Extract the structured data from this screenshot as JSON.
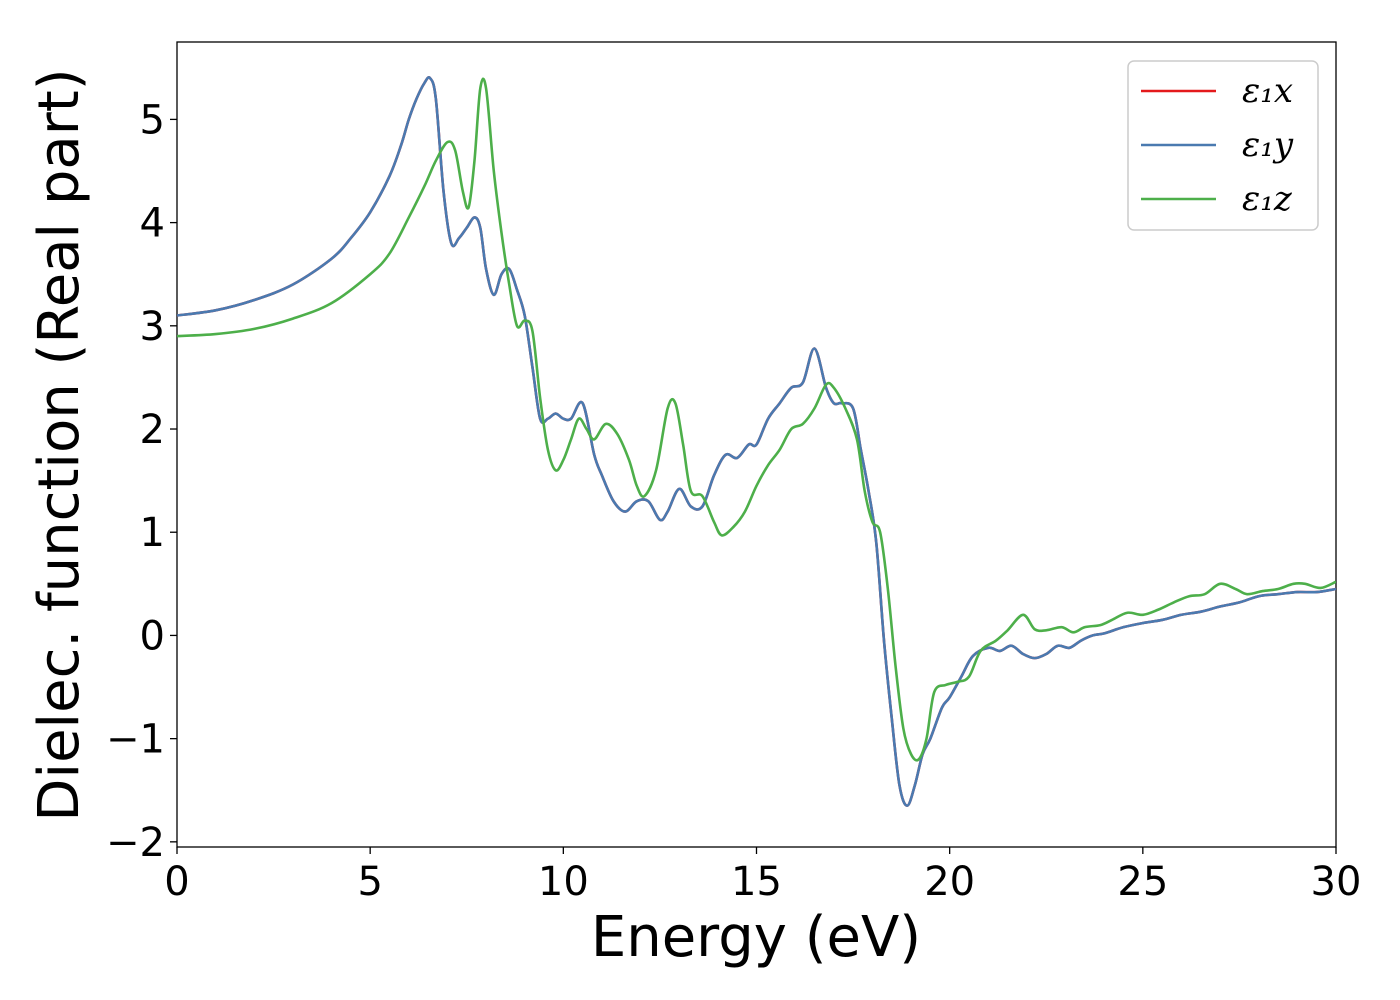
{
  "chart_data": {
    "type": "line",
    "title": "",
    "xlabel": "Energy (eV)",
    "ylabel": "Dielec. function (Real part)",
    "xlim": [
      0,
      30
    ],
    "ylim": [
      -2.05,
      5.75
    ],
    "xticks": [
      0,
      5,
      10,
      15,
      20,
      25,
      30
    ],
    "yticks": [
      -2,
      -1,
      0,
      1,
      2,
      3,
      4,
      5
    ],
    "xtick_labels": [
      "0",
      "5",
      "10",
      "15",
      "20",
      "25",
      "30"
    ],
    "ytick_labels": [
      "−2",
      "−1",
      "0",
      "1",
      "2",
      "3",
      "4",
      "5"
    ],
    "grid": false,
    "legend_position": "top-right",
    "series": [
      {
        "name": "ε₁x",
        "color": "#e41a1c",
        "x": [
          0,
          1,
          2,
          3,
          4,
          4.5,
          5,
          5.5,
          5.8,
          6.0,
          6.2,
          6.4,
          6.55,
          6.7,
          6.9,
          7.1,
          7.3,
          7.5,
          7.7,
          7.85,
          8.0,
          8.2,
          8.4,
          8.6,
          8.8,
          9.0,
          9.2,
          9.4,
          9.6,
          9.8,
          10.0,
          10.2,
          10.5,
          10.8,
          11.0,
          11.3,
          11.6,
          11.9,
          12.2,
          12.5,
          12.7,
          13.0,
          13.3,
          13.6,
          13.9,
          14.2,
          14.5,
          14.8,
          15.0,
          15.3,
          15.6,
          15.9,
          16.2,
          16.5,
          16.8,
          17.0,
          17.2,
          17.5,
          17.7,
          17.9,
          18.1,
          18.3,
          18.5,
          18.7,
          18.9,
          19.1,
          19.3,
          19.5,
          19.8,
          20.0,
          20.3,
          20.6,
          21.0,
          21.3,
          21.6,
          21.9,
          22.2,
          22.5,
          22.8,
          23.1,
          23.4,
          23.7,
          24.0,
          24.5,
          25.0,
          25.5,
          26.0,
          26.5,
          27.0,
          27.5,
          28.0,
          28.5,
          29.0,
          29.5,
          30.0
        ],
        "y": [
          3.1,
          3.15,
          3.25,
          3.4,
          3.65,
          3.85,
          4.1,
          4.45,
          4.75,
          5.0,
          5.2,
          5.35,
          5.4,
          5.2,
          4.3,
          3.8,
          3.85,
          3.95,
          4.05,
          3.95,
          3.55,
          3.3,
          3.5,
          3.55,
          3.35,
          3.1,
          2.6,
          2.1,
          2.1,
          2.15,
          2.1,
          2.1,
          2.25,
          1.75,
          1.55,
          1.3,
          1.2,
          1.3,
          1.3,
          1.12,
          1.2,
          1.42,
          1.25,
          1.25,
          1.55,
          1.75,
          1.72,
          1.85,
          1.85,
          2.1,
          2.25,
          2.4,
          2.45,
          2.78,
          2.4,
          2.25,
          2.25,
          2.2,
          1.8,
          1.4,
          0.9,
          -0.05,
          -0.8,
          -1.45,
          -1.65,
          -1.45,
          -1.15,
          -1.0,
          -0.7,
          -0.6,
          -0.4,
          -0.2,
          -0.12,
          -0.15,
          -0.1,
          -0.18,
          -0.22,
          -0.18,
          -0.1,
          -0.12,
          -0.05,
          0.0,
          0.02,
          0.08,
          0.12,
          0.15,
          0.2,
          0.23,
          0.28,
          0.32,
          0.38,
          0.4,
          0.42,
          0.42,
          0.45
        ]
      },
      {
        "name": "ε₁y",
        "color": "#4a7ab0",
        "x": [
          0,
          1,
          2,
          3,
          4,
          4.5,
          5,
          5.5,
          5.8,
          6.0,
          6.2,
          6.4,
          6.55,
          6.7,
          6.9,
          7.1,
          7.3,
          7.5,
          7.7,
          7.85,
          8.0,
          8.2,
          8.4,
          8.6,
          8.8,
          9.0,
          9.2,
          9.4,
          9.6,
          9.8,
          10.0,
          10.2,
          10.5,
          10.8,
          11.0,
          11.3,
          11.6,
          11.9,
          12.2,
          12.5,
          12.7,
          13.0,
          13.3,
          13.6,
          13.9,
          14.2,
          14.5,
          14.8,
          15.0,
          15.3,
          15.6,
          15.9,
          16.2,
          16.5,
          16.8,
          17.0,
          17.2,
          17.5,
          17.7,
          17.9,
          18.1,
          18.3,
          18.5,
          18.7,
          18.9,
          19.1,
          19.3,
          19.5,
          19.8,
          20.0,
          20.3,
          20.6,
          21.0,
          21.3,
          21.6,
          21.9,
          22.2,
          22.5,
          22.8,
          23.1,
          23.4,
          23.7,
          24.0,
          24.5,
          25.0,
          25.5,
          26.0,
          26.5,
          27.0,
          27.5,
          28.0,
          28.5,
          29.0,
          29.5,
          30.0
        ],
        "y": [
          3.1,
          3.15,
          3.25,
          3.4,
          3.65,
          3.85,
          4.1,
          4.45,
          4.75,
          5.0,
          5.2,
          5.35,
          5.4,
          5.2,
          4.3,
          3.8,
          3.85,
          3.95,
          4.05,
          3.95,
          3.55,
          3.3,
          3.5,
          3.55,
          3.35,
          3.1,
          2.6,
          2.1,
          2.1,
          2.15,
          2.1,
          2.1,
          2.25,
          1.75,
          1.55,
          1.3,
          1.2,
          1.3,
          1.3,
          1.12,
          1.2,
          1.42,
          1.25,
          1.25,
          1.55,
          1.75,
          1.72,
          1.85,
          1.85,
          2.1,
          2.25,
          2.4,
          2.45,
          2.78,
          2.4,
          2.25,
          2.25,
          2.2,
          1.8,
          1.4,
          0.9,
          -0.05,
          -0.8,
          -1.45,
          -1.65,
          -1.45,
          -1.15,
          -1.0,
          -0.7,
          -0.6,
          -0.4,
          -0.2,
          -0.12,
          -0.15,
          -0.1,
          -0.18,
          -0.22,
          -0.18,
          -0.1,
          -0.12,
          -0.05,
          0.0,
          0.02,
          0.08,
          0.12,
          0.15,
          0.2,
          0.23,
          0.28,
          0.32,
          0.38,
          0.4,
          0.42,
          0.42,
          0.45
        ]
      },
      {
        "name": "ε₁z",
        "color": "#4daf4a",
        "x": [
          0,
          1,
          2,
          3,
          4,
          5,
          5.5,
          6.0,
          6.4,
          6.7,
          7.0,
          7.2,
          7.4,
          7.55,
          7.7,
          7.85,
          8.0,
          8.2,
          8.4,
          8.6,
          8.8,
          9.0,
          9.2,
          9.4,
          9.6,
          9.8,
          10.0,
          10.2,
          10.4,
          10.6,
          10.8,
          11.1,
          11.4,
          11.7,
          11.9,
          12.1,
          12.4,
          12.7,
          12.9,
          13.1,
          13.3,
          13.6,
          13.9,
          14.1,
          14.4,
          14.7,
          15.0,
          15.3,
          15.6,
          15.9,
          16.2,
          16.5,
          16.8,
          17.0,
          17.3,
          17.6,
          17.8,
          18.0,
          18.2,
          18.4,
          18.6,
          18.8,
          19.0,
          19.2,
          19.4,
          19.6,
          19.9,
          20.2,
          20.5,
          20.8,
          21.2,
          21.5,
          21.9,
          22.2,
          22.5,
          22.9,
          23.2,
          23.5,
          23.9,
          24.2,
          24.6,
          25.0,
          25.4,
          25.8,
          26.2,
          26.6,
          27.0,
          27.4,
          27.7,
          28.1,
          28.5,
          28.9,
          29.2,
          29.6,
          30.0
        ],
        "y": [
          2.9,
          2.92,
          2.97,
          3.07,
          3.22,
          3.5,
          3.7,
          4.05,
          4.35,
          4.6,
          4.78,
          4.7,
          4.3,
          4.15,
          4.6,
          5.3,
          5.3,
          4.5,
          3.9,
          3.4,
          3.0,
          3.05,
          2.95,
          2.3,
          1.8,
          1.6,
          1.7,
          1.9,
          2.1,
          2.0,
          1.9,
          2.05,
          1.95,
          1.7,
          1.45,
          1.35,
          1.6,
          2.2,
          2.25,
          1.85,
          1.4,
          1.35,
          1.1,
          0.97,
          1.05,
          1.2,
          1.45,
          1.65,
          1.8,
          2.0,
          2.05,
          2.2,
          2.43,
          2.4,
          2.2,
          1.9,
          1.4,
          1.1,
          1.0,
          0.45,
          -0.3,
          -0.9,
          -1.15,
          -1.2,
          -1.0,
          -0.55,
          -0.48,
          -0.45,
          -0.4,
          -0.15,
          -0.05,
          0.05,
          0.2,
          0.06,
          0.05,
          0.08,
          0.03,
          0.08,
          0.1,
          0.15,
          0.22,
          0.2,
          0.25,
          0.32,
          0.38,
          0.4,
          0.5,
          0.45,
          0.4,
          0.43,
          0.45,
          0.5,
          0.5,
          0.46,
          0.52
        ]
      }
    ]
  }
}
